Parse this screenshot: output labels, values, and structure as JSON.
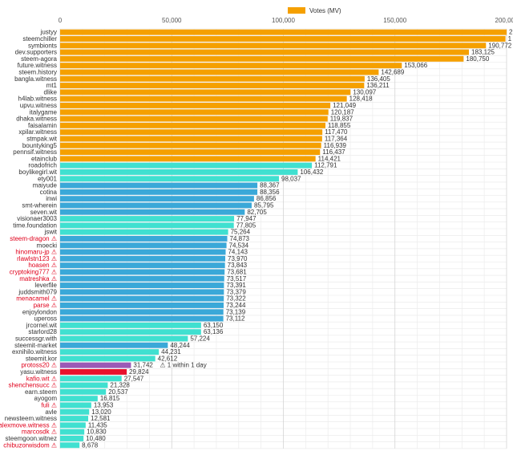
{
  "chart_data": {
    "type": "bar",
    "orientation": "horizontal",
    "legend": {
      "label": "Votes (MV)",
      "color": "#f5a000",
      "placement": "top"
    },
    "xlim": [
      0,
      200000
    ],
    "x_ticks": [
      "0",
      "50,000",
      "100,000",
      "150,000",
      "200,000"
    ],
    "x_tick_values": [
      0,
      50000,
      100000,
      150000,
      200000
    ],
    "grid": true,
    "colors": {
      "orange": "#f5a000",
      "teal": "#40e0d0",
      "blue": "#3aa8d8",
      "purple": "#9b59b6",
      "red": "#e8112d",
      "red_label": "#e0001b"
    },
    "bars": [
      {
        "name": "justyy",
        "value": 200000,
        "label": "2",
        "color": "orange",
        "red": false,
        "warn": false
      },
      {
        "name": "steemchiller",
        "value": 199500,
        "label": "1",
        "color": "orange",
        "red": false,
        "warn": false
      },
      {
        "name": "symbionts",
        "value": 190772,
        "label": "190,772",
        "color": "orange",
        "red": false,
        "warn": false
      },
      {
        "name": "dev.supporters",
        "value": 183125,
        "label": "183,125",
        "color": "orange",
        "red": false,
        "warn": false
      },
      {
        "name": "steem-agora",
        "value": 180750,
        "label": "180,750",
        "color": "orange",
        "red": false,
        "warn": false
      },
      {
        "name": "future.witness",
        "value": 153066,
        "label": "153,066",
        "color": "orange",
        "red": false,
        "warn": false
      },
      {
        "name": "steem.history",
        "value": 142689,
        "label": "142,689",
        "color": "orange",
        "red": false,
        "warn": false
      },
      {
        "name": "bangla.witness",
        "value": 136405,
        "label": "136,405",
        "color": "orange",
        "red": false,
        "warn": false
      },
      {
        "name": "mt1",
        "value": 136211,
        "label": "136,211",
        "color": "orange",
        "red": false,
        "warn": false
      },
      {
        "name": "dlike",
        "value": 130097,
        "label": "130,097",
        "color": "orange",
        "red": false,
        "warn": false
      },
      {
        "name": "h4lab.witness",
        "value": 128418,
        "label": "128,418",
        "color": "orange",
        "red": false,
        "warn": false
      },
      {
        "name": "upvu.witness",
        "value": 121049,
        "label": "121,049",
        "color": "orange",
        "red": false,
        "warn": false
      },
      {
        "name": "italygame",
        "value": 120187,
        "label": "120,187",
        "color": "orange",
        "red": false,
        "warn": false
      },
      {
        "name": "dhaka.witness",
        "value": 119837,
        "label": "119,837",
        "color": "orange",
        "red": false,
        "warn": false
      },
      {
        "name": "faisalamin",
        "value": 118855,
        "label": "118,855",
        "color": "orange",
        "red": false,
        "warn": false
      },
      {
        "name": "xpilar.witness",
        "value": 117470,
        "label": "117,470",
        "color": "orange",
        "red": false,
        "warn": false
      },
      {
        "name": "stmpak.wit",
        "value": 117364,
        "label": "117,364",
        "color": "orange",
        "red": false,
        "warn": false
      },
      {
        "name": "bountyking5",
        "value": 116939,
        "label": "116,939",
        "color": "orange",
        "red": false,
        "warn": false
      },
      {
        "name": "pennsif.witness",
        "value": 116437,
        "label": "116,437",
        "color": "orange",
        "red": false,
        "warn": false
      },
      {
        "name": "etainclub",
        "value": 114421,
        "label": "114,421",
        "color": "orange",
        "red": false,
        "warn": false
      },
      {
        "name": "roadofrich",
        "value": 112791,
        "label": "112,791",
        "color": "teal",
        "red": false,
        "warn": false
      },
      {
        "name": "boylikegirl.wit",
        "value": 106432,
        "label": "106,432",
        "color": "teal",
        "red": false,
        "warn": false
      },
      {
        "name": "ety001",
        "value": 98037,
        "label": "98,037",
        "color": "teal",
        "red": false,
        "warn": false
      },
      {
        "name": "maiyude",
        "value": 88367,
        "label": "88,367",
        "color": "blue",
        "red": false,
        "warn": false
      },
      {
        "name": "cotina",
        "value": 88356,
        "label": "88,356",
        "color": "blue",
        "red": false,
        "warn": false
      },
      {
        "name": "inwi",
        "value": 86856,
        "label": "86,856",
        "color": "blue",
        "red": false,
        "warn": false
      },
      {
        "name": "smt-wherein",
        "value": 85795,
        "label": "85,795",
        "color": "blue",
        "red": false,
        "warn": false
      },
      {
        "name": "seven.wit",
        "value": 82705,
        "label": "82,705",
        "color": "blue",
        "red": false,
        "warn": false
      },
      {
        "name": "visionaer3003",
        "value": 77947,
        "label": "77,947",
        "color": "teal",
        "red": false,
        "warn": false
      },
      {
        "name": "time.foundation",
        "value": 77805,
        "label": "77,805",
        "color": "teal",
        "red": false,
        "warn": false
      },
      {
        "name": "jswit",
        "value": 75264,
        "label": "75,264",
        "color": "teal",
        "red": false,
        "warn": false
      },
      {
        "name": "steem-dragon",
        "value": 74873,
        "label": "74,873",
        "color": "blue",
        "red": true,
        "warn": true
      },
      {
        "name": "moecki",
        "value": 74534,
        "label": "74,534",
        "color": "blue",
        "red": false,
        "warn": false
      },
      {
        "name": "hinomaru-jp",
        "value": 74143,
        "label": "74,143",
        "color": "blue",
        "red": true,
        "warn": true
      },
      {
        "name": "rlawlstn123",
        "value": 73970,
        "label": "73,970",
        "color": "blue",
        "red": true,
        "warn": true
      },
      {
        "name": "hoasen",
        "value": 73843,
        "label": "73,843",
        "color": "blue",
        "red": true,
        "warn": true
      },
      {
        "name": "cryptoking777",
        "value": 73681,
        "label": "73,681",
        "color": "blue",
        "red": true,
        "warn": true
      },
      {
        "name": "matreshka",
        "value": 73517,
        "label": "73,517",
        "color": "blue",
        "red": true,
        "warn": true
      },
      {
        "name": "leverfile",
        "value": 73391,
        "label": "73,391",
        "color": "blue",
        "red": false,
        "warn": false
      },
      {
        "name": "juddsmith079",
        "value": 73379,
        "label": "73,379",
        "color": "blue",
        "red": false,
        "warn": false
      },
      {
        "name": "menacamel",
        "value": 73322,
        "label": "73,322",
        "color": "blue",
        "red": true,
        "warn": true
      },
      {
        "name": "parse",
        "value": 73244,
        "label": "73,244",
        "color": "blue",
        "red": true,
        "warn": true
      },
      {
        "name": "enjoylondon",
        "value": 73139,
        "label": "73,139",
        "color": "blue",
        "red": false,
        "warn": false
      },
      {
        "name": "upeross",
        "value": 73112,
        "label": "73,112",
        "color": "blue",
        "red": false,
        "warn": false
      },
      {
        "name": "jrcornel.wit",
        "value": 63150,
        "label": "63,150",
        "color": "teal",
        "red": false,
        "warn": false
      },
      {
        "name": "starlord28",
        "value": 63136,
        "label": "63,136",
        "color": "teal",
        "red": false,
        "warn": false
      },
      {
        "name": "successgr.with",
        "value": 57224,
        "label": "57,224",
        "color": "teal",
        "red": false,
        "warn": false
      },
      {
        "name": "steemit-market",
        "value": 48244,
        "label": "48,244",
        "color": "blue",
        "red": false,
        "warn": false
      },
      {
        "name": "exnihilo.witness",
        "value": 44231,
        "label": "44,231",
        "color": "teal",
        "red": false,
        "warn": false
      },
      {
        "name": "steemit.kor",
        "value": 42612,
        "label": "42,612",
        "color": "teal",
        "red": false,
        "warn": false
      },
      {
        "name": "protoss20",
        "value": 31742,
        "label": "31,742",
        "note": "1 within 1 day",
        "color": "purple",
        "red": true,
        "warn": true
      },
      {
        "name": "yasu.witness",
        "value": 29824,
        "label": "29,824",
        "color": "red",
        "red": false,
        "warn": false
      },
      {
        "name": "kafio.wit",
        "value": 27547,
        "label": "27,547",
        "color": "teal",
        "red": true,
        "warn": true
      },
      {
        "name": "shenchensucc",
        "value": 21328,
        "label": "21,328",
        "color": "teal",
        "red": true,
        "warn": true
      },
      {
        "name": "earn.steem",
        "value": 20537,
        "label": "20,537",
        "color": "teal",
        "red": false,
        "warn": false
      },
      {
        "name": "ayogom",
        "value": 16815,
        "label": "16,815",
        "color": "teal",
        "red": false,
        "warn": false
      },
      {
        "name": "fuli",
        "value": 13953,
        "label": "13,953",
        "color": "teal",
        "red": true,
        "warn": true
      },
      {
        "name": "avle",
        "value": 13020,
        "label": "13,020",
        "color": "teal",
        "red": false,
        "warn": false
      },
      {
        "name": "newsteem.witness",
        "value": 12581,
        "label": "12,581",
        "color": "teal",
        "red": false,
        "warn": false
      },
      {
        "name": "alexmove.witness",
        "value": 11435,
        "label": "11,435",
        "color": "teal",
        "red": true,
        "warn": true
      },
      {
        "name": "marcosdk",
        "value": 10830,
        "label": "10,830",
        "color": "teal",
        "red": true,
        "warn": true
      },
      {
        "name": "steemgoon.witnez",
        "value": 10480,
        "label": "10,480",
        "color": "teal",
        "red": false,
        "warn": false
      },
      {
        "name": "chibuzorwisdom",
        "value": 8678,
        "label": "8,678",
        "color": "teal",
        "red": true,
        "warn": true
      }
    ]
  }
}
